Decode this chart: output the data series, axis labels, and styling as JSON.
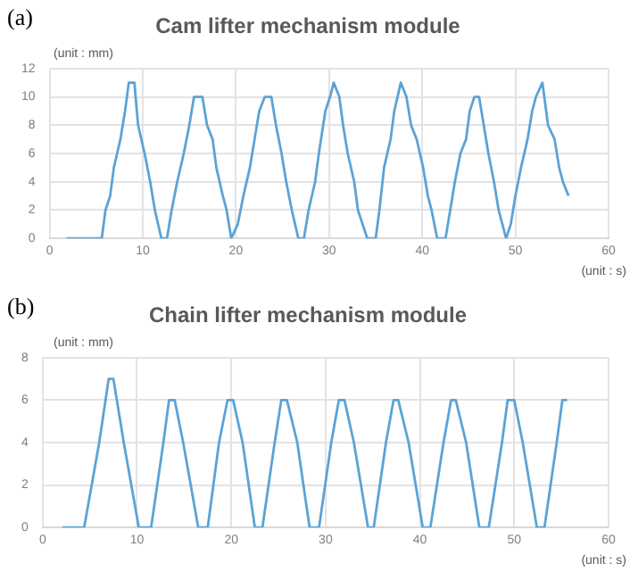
{
  "chart_data": [
    {
      "type": "line",
      "title": "Cam lifter mechanism module",
      "xlabel": "(unit : s)",
      "ylabel": "(unit : mm)",
      "annotations": [
        "(a)"
      ],
      "xlim": [
        0,
        60
      ],
      "xticks": [
        0,
        10,
        20,
        30,
        40,
        50,
        60
      ],
      "ylim": [
        0,
        12
      ],
      "yticks": [
        0,
        2,
        4,
        6,
        8,
        10,
        12
      ],
      "grid": true,
      "legend": false,
      "marker": "none",
      "line_style": "solid",
      "series": [
        {
          "color": "#5ba3d6",
          "x": [
            1.8,
            5.6,
            6.0,
            6.5,
            6.9,
            7.6,
            8.1,
            8.5,
            9.1,
            9.5,
            10.2,
            10.8,
            11.3,
            12.0,
            12.6,
            13.1,
            13.7,
            14.4,
            15.0,
            15.5,
            16.4,
            16.9,
            17.5,
            17.9,
            18.6,
            19.0,
            19.5,
            20.2,
            20.8,
            21.5,
            22.0,
            22.5,
            23.1,
            23.8,
            24.3,
            24.9,
            25.4,
            26.0,
            26.7,
            27.3,
            27.8,
            28.5,
            28.9,
            29.6,
            30.1,
            30.5,
            31.1,
            31.5,
            32.0,
            32.7,
            33.1,
            34.1,
            35.0,
            35.4,
            35.9,
            36.6,
            37.0,
            37.7,
            38.3,
            38.8,
            39.4,
            40.1,
            40.6,
            41.0,
            41.6,
            42.5,
            43.0,
            43.5,
            44.1,
            44.7,
            45.1,
            45.6,
            46.1,
            46.6,
            47.1,
            47.7,
            48.2,
            49.0,
            49.5,
            50.0,
            50.6,
            51.3,
            51.8,
            52.2,
            52.9,
            53.5,
            54.2,
            54.7,
            55.1,
            55.7
          ],
          "values": [
            0,
            0,
            2,
            3,
            5,
            7,
            9,
            11,
            11,
            8,
            6,
            4,
            2,
            0,
            0,
            2,
            4,
            6,
            8,
            10,
            10,
            8,
            7,
            5,
            3,
            2,
            0,
            1,
            3,
            5,
            7,
            9,
            10,
            10,
            8,
            6,
            4,
            2,
            0,
            0,
            2,
            4,
            6,
            9,
            10,
            11,
            10,
            8,
            6,
            4,
            2,
            0,
            0,
            2,
            5,
            7,
            9,
            11,
            10,
            8,
            7,
            5,
            3,
            2,
            0,
            0,
            2,
            4,
            6,
            7,
            9,
            10,
            10,
            8,
            6,
            4,
            2,
            0,
            1,
            3,
            5,
            7,
            9,
            10,
            11,
            8,
            7,
            5,
            4,
            3
          ]
        }
      ]
    },
    {
      "type": "line",
      "title": "Chain lifter mechanism module",
      "xlabel": "(unit : s)",
      "ylabel": "(unit : mm)",
      "annotations": [
        "(b)"
      ],
      "xlim": [
        0,
        60
      ],
      "xticks": [
        0,
        10,
        20,
        30,
        40,
        50,
        60
      ],
      "ylim": [
        0,
        8
      ],
      "yticks": [
        0,
        2,
        4,
        6,
        8
      ],
      "grid": true,
      "legend": false,
      "marker": "none",
      "line_style": "solid",
      "series": [
        {
          "color": "#5ba3d6",
          "x": [
            2.1,
            4.4,
            6.0,
            7.0,
            7.5,
            8.6,
            10.2,
            11.5,
            12.8,
            13.4,
            14.0,
            14.9,
            16.5,
            17.5,
            18.7,
            19.6,
            20.2,
            21.2,
            22.5,
            23.3,
            24.6,
            25.3,
            25.9,
            27.0,
            28.3,
            29.3,
            30.6,
            31.4,
            32.0,
            33.0,
            34.5,
            35.1,
            36.4,
            37.2,
            37.7,
            38.8,
            40.3,
            41.1,
            42.5,
            43.3,
            43.8,
            44.9,
            46.3,
            47.3,
            48.7,
            49.3,
            50.0,
            50.9,
            52.4,
            53.2,
            54.5,
            55.1,
            55.6
          ],
          "values": [
            0,
            0,
            4,
            7,
            7,
            4,
            0,
            0,
            4,
            6,
            6,
            4,
            0,
            0,
            4,
            6,
            6,
            4,
            0,
            0,
            4,
            6,
            6,
            4,
            0,
            0,
            4,
            6,
            6,
            4,
            0,
            0,
            4,
            6,
            6,
            4,
            0,
            0,
            4,
            6,
            6,
            4,
            0,
            0,
            4,
            6,
            6,
            4,
            0,
            0,
            4,
            6,
            6
          ]
        }
      ]
    }
  ]
}
